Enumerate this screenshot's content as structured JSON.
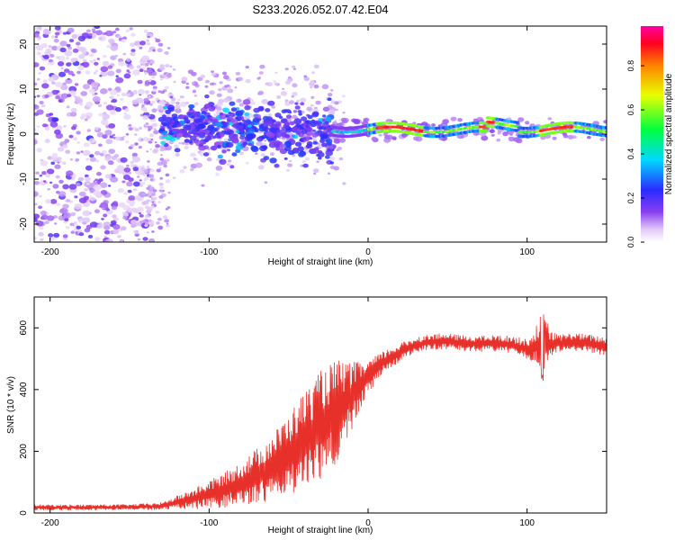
{
  "title": "S233.2026.052.07.42.E04",
  "colors": {
    "snr_line": "#e8302a",
    "axis": "#000000",
    "scatter_low": "#7b3fe4",
    "scatter_faint": "#c9a8f0"
  },
  "chart_data": [
    {
      "type": "heatmap",
      "name": "frequency-vs-height",
      "title": "S233.2026.052.07.42.E04",
      "xlabel": "Height of straight line (km)",
      "ylabel": "Frequency (Hz)",
      "xlim": [
        -210,
        150
      ],
      "ylim": [
        -24,
        24
      ],
      "x_ticks": [
        -200,
        -100,
        0,
        100
      ],
      "y_ticks": [
        -20,
        -10,
        0,
        10,
        20
      ],
      "colorbar": {
        "label": "Normalized spectral amplitude",
        "range": [
          0.0,
          0.98
        ],
        "ticks": [
          0.0,
          0.2,
          0.4,
          0.6,
          0.8
        ],
        "tick_labels": [
          "0.0",
          "0.2",
          "0.4",
          "0.6",
          "0.8"
        ]
      },
      "features": [
        {
          "segment": "noise",
          "x_range": [
            -210,
            -130
          ],
          "freq_range": [
            -24,
            24
          ],
          "amplitude": 0.1
        },
        {
          "segment": "scattered",
          "x_range": [
            -130,
            -20
          ],
          "freq_range": [
            -10,
            8
          ],
          "amplitude": 0.25
        },
        {
          "segment": "coherent-band",
          "x_range": [
            -20,
            150
          ],
          "center_freq": 1,
          "amplitude": 0.9
        }
      ]
    },
    {
      "type": "line",
      "name": "snr-vs-height",
      "title": "",
      "xlabel": "Height of straight line (km)",
      "ylabel": "SNR (10 * v/v)",
      "xlim": [
        -210,
        150
      ],
      "ylim": [
        0,
        700
      ],
      "x_ticks": [
        -200,
        -100,
        0,
        100
      ],
      "y_ticks": [
        0,
        200,
        400,
        600
      ],
      "grid": false,
      "series": [
        {
          "name": "SNR",
          "x": [
            -210,
            -180,
            -150,
            -130,
            -120,
            -110,
            -100,
            -90,
            -80,
            -70,
            -60,
            -50,
            -40,
            -30,
            -20,
            -10,
            0,
            10,
            20,
            30,
            40,
            50,
            60,
            70,
            80,
            90,
            100,
            105,
            110,
            115,
            120,
            130,
            140,
            150
          ],
          "y": [
            18,
            18,
            19,
            22,
            35,
            45,
            60,
            75,
            95,
            120,
            150,
            190,
            240,
            280,
            330,
            380,
            440,
            490,
            520,
            545,
            555,
            555,
            550,
            548,
            550,
            545,
            530,
            540,
            560,
            545,
            550,
            555,
            548,
            540
          ],
          "noise": [
            8,
            8,
            8,
            10,
            18,
            28,
            38,
            48,
            60,
            75,
            90,
            110,
            130,
            150,
            140,
            90,
            45,
            30,
            25,
            22,
            22,
            22,
            22,
            22,
            22,
            25,
            28,
            45,
            90,
            35,
            25,
            25,
            25,
            25
          ]
        }
      ]
    }
  ]
}
